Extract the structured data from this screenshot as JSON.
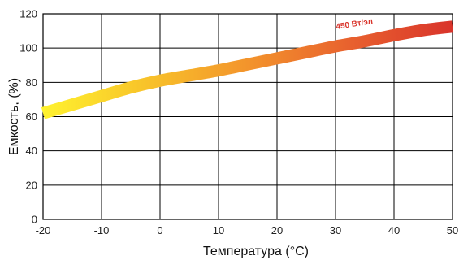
{
  "chart_data": {
    "type": "line",
    "xlabel": "Температура (°C)",
    "ylabel": "Емкость, (%)",
    "xlim": [
      -20,
      50
    ],
    "ylim": [
      0,
      120
    ],
    "xticks": [
      -20,
      -10,
      0,
      10,
      20,
      30,
      40,
      50
    ],
    "yticks": [
      0,
      20,
      40,
      60,
      80,
      100,
      120
    ],
    "grid": true,
    "series": [
      {
        "name": "450 Вт/эл",
        "x": [
          -20,
          -15,
          -10,
          -5,
          0,
          5,
          10,
          15,
          20,
          25,
          30,
          35,
          40,
          45,
          50
        ],
        "y": [
          62,
          67,
          72,
          77,
          81,
          84,
          87,
          90.5,
          94,
          97.5,
          101,
          104,
          107.5,
          110.5,
          112.5
        ],
        "gradient": [
          "#fff22e",
          "#f8c32a",
          "#f3942c",
          "#e8612e",
          "#d9342b"
        ]
      }
    ],
    "annotations": [
      {
        "text": "450 Вт/эл",
        "x": 30,
        "y": 110,
        "color": "#d9342b"
      }
    ]
  }
}
